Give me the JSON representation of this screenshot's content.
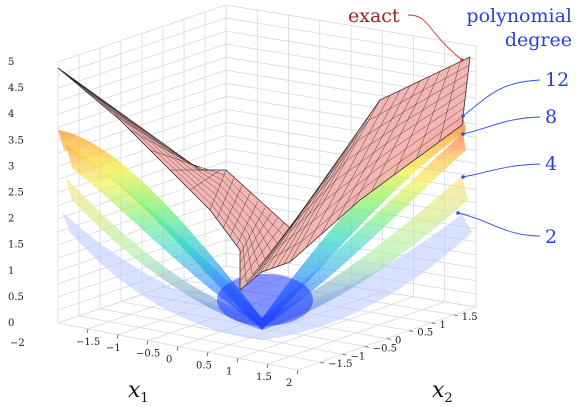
{
  "chart_data": {
    "type": "surface",
    "x_label": "x",
    "x_label_sub": "1",
    "y_label": "x",
    "y_label_sub": "2",
    "x_ticks": [
      "−1.5",
      "−1",
      "−0.5",
      "0",
      "0.5",
      "1",
      "1.5",
      "2"
    ],
    "y_ticks": [
      "−1.5",
      "−1",
      "−0.5",
      "0",
      "0.5",
      "1",
      "1.5"
    ],
    "z_ticks": [
      "0",
      "0.5",
      "1",
      "1.5",
      "2",
      "2.5",
      "3",
      "3.5",
      "4",
      "4.5",
      "5"
    ],
    "xlim": [
      -2,
      2
    ],
    "ylim": [
      -2,
      2
    ],
    "zlim": [
      0,
      5
    ],
    "x_min_label": "−2",
    "exact_label": "exact",
    "poly_title_line1": "polynomial",
    "poly_title_line2": "degree",
    "degree_labels": [
      "12",
      "8",
      "4",
      "2"
    ],
    "colors": {
      "exact_fill": "#f4b0ac",
      "exact_label": "#a0202a",
      "exact_leader": "#e03030",
      "poly_labels": "#2b3fe0",
      "poly_leader": "#3050e8"
    }
  }
}
